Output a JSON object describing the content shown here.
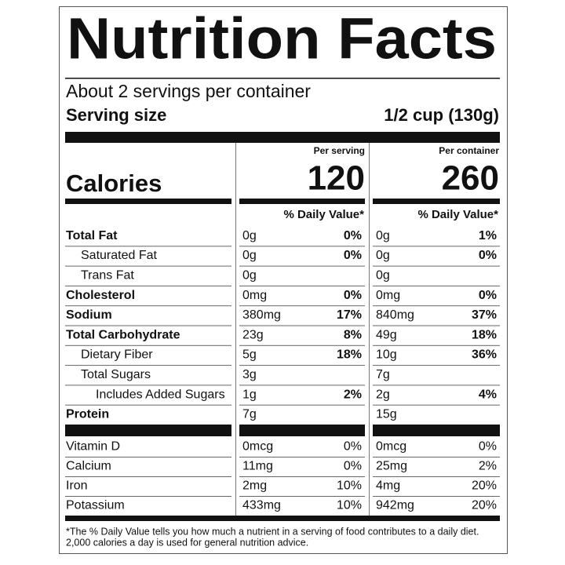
{
  "title": "Nutrition Facts",
  "servings": "About 2 servings per container",
  "serving_size": {
    "label": "Serving size",
    "value": "1/2 cup (130g)"
  },
  "calories_label": "Calories",
  "columns": [
    {
      "header": "Per serving",
      "calories": 120
    },
    {
      "header": "Per container",
      "calories": 260
    }
  ],
  "dv_header": "% Daily Value*",
  "nutrients": [
    {
      "name": "Total Fat",
      "bold": true,
      "indent": 0,
      "values": [
        [
          "0g",
          "0%"
        ],
        [
          "0g",
          "1%"
        ]
      ]
    },
    {
      "name": "Saturated Fat",
      "bold": false,
      "indent": 1,
      "values": [
        [
          "0g",
          "0%"
        ],
        [
          "0g",
          "0%"
        ]
      ]
    },
    {
      "name": "Trans Fat",
      "bold": false,
      "indent": 1,
      "values": [
        [
          "0g"
        ],
        [
          "0g"
        ]
      ]
    },
    {
      "name": "Cholesterol",
      "bold": true,
      "indent": 0,
      "values": [
        [
          "0mg",
          "0%"
        ],
        [
          "0mg",
          "0%"
        ]
      ]
    },
    {
      "name": "Sodium",
      "bold": true,
      "indent": 0,
      "values": [
        [
          "380mg",
          "17%"
        ],
        [
          "840mg",
          "37%"
        ]
      ]
    },
    {
      "name": "Total Carbohydrate",
      "bold": true,
      "indent": 0,
      "values": [
        [
          "23g",
          "8%"
        ],
        [
          "49g",
          "18%"
        ]
      ]
    },
    {
      "name": "Dietary Fiber",
      "bold": false,
      "indent": 1,
      "values": [
        [
          "5g",
          "18%"
        ],
        [
          "10g",
          "36%"
        ]
      ]
    },
    {
      "name": "Total Sugars",
      "bold": false,
      "indent": 1,
      "values": [
        [
          "3g"
        ],
        [
          "7g"
        ]
      ]
    },
    {
      "name": "Includes Added Sugars",
      "bold": false,
      "indent": 2,
      "values": [
        [
          "1g",
          "2%"
        ],
        [
          "2g",
          "4%"
        ]
      ]
    },
    {
      "name": "Protein",
      "bold": true,
      "indent": 0,
      "values": [
        [
          "7g"
        ],
        [
          "15g"
        ]
      ]
    }
  ],
  "minerals": [
    {
      "name": "Vitamin D",
      "values": [
        [
          "0mcg",
          "0%"
        ],
        [
          "0mcg",
          "0%"
        ]
      ]
    },
    {
      "name": "Calcium",
      "values": [
        [
          "11mg",
          "0%"
        ],
        [
          "25mg",
          "2%"
        ]
      ]
    },
    {
      "name": "Iron",
      "values": [
        [
          "2mg",
          "10%"
        ],
        [
          "4mg",
          "20%"
        ]
      ]
    },
    {
      "name": "Potassium",
      "values": [
        [
          "433mg",
          "10%"
        ],
        [
          "942mg",
          "20%"
        ]
      ]
    }
  ],
  "footnote": [
    "*The % Daily Value tells you how much a nutrient in a serving of food contributes to a daily diet.",
    "2,000 calories a day is used for general nutrition advice."
  ]
}
